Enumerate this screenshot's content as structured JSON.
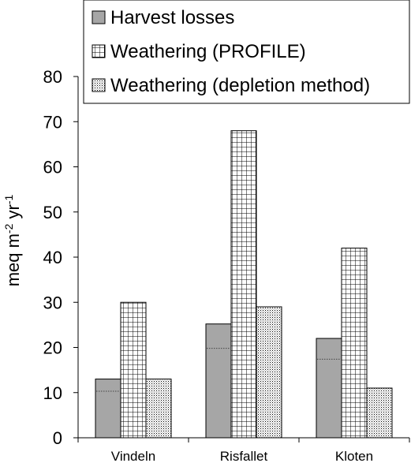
{
  "chart_data": {
    "type": "bar",
    "categories": [
      "Vindeln",
      "Risfallet",
      "Kloten"
    ],
    "series": [
      {
        "name": "Harvest losses",
        "values": [
          13,
          25.2,
          22
        ],
        "pattern": "solid-grey",
        "color": "#a6a6a6",
        "inner_line_values": [
          10.3,
          19.8,
          17.4
        ]
      },
      {
        "name": "Weathering (PROFILE)",
        "values": [
          30,
          68,
          42
        ],
        "pattern": "grid",
        "color": "#ffffff"
      },
      {
        "name": "Weathering (depletion method)",
        "values": [
          13,
          29,
          11
        ],
        "pattern": "dots",
        "color": "#ffffff"
      }
    ],
    "ylabel": {
      "base": "meq m",
      "sup1": "-2",
      "mid": " yr",
      "sup2": "-1"
    },
    "ylim": [
      0,
      80
    ],
    "yticks": [
      0,
      10,
      20,
      30,
      40,
      50,
      60,
      70,
      80
    ],
    "legend_position": "top-right",
    "grid": false
  }
}
